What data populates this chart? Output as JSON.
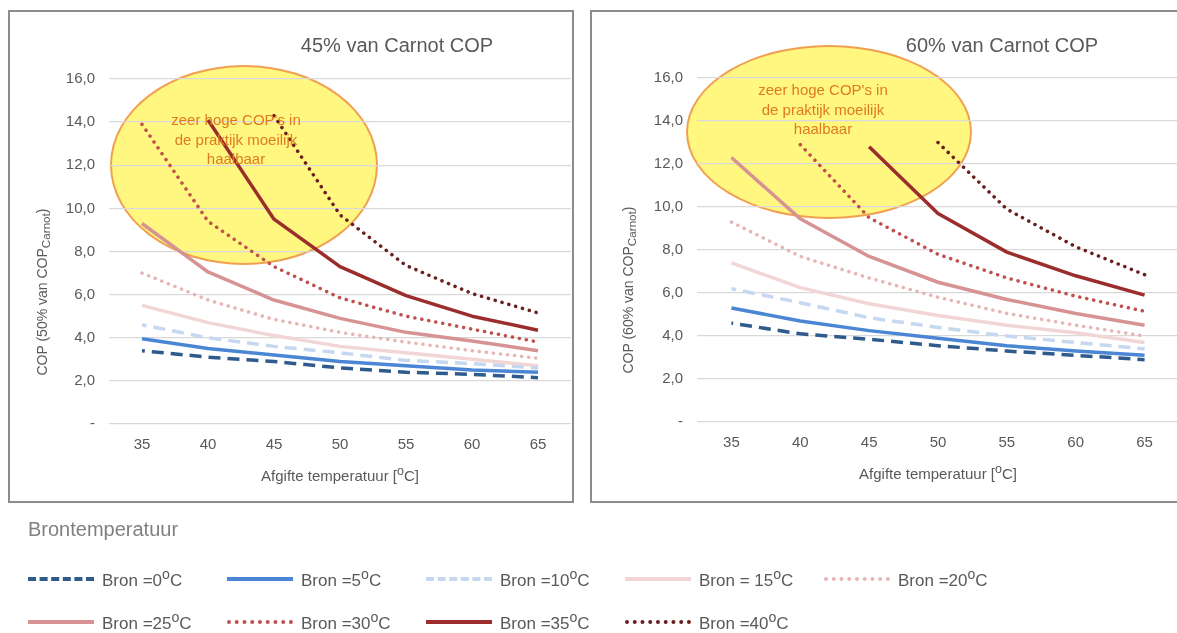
{
  "chart_data": [
    {
      "type": "line",
      "title": "45% van Carnot COP",
      "xlabel": "Afgifte temperatuur [$^{o}$C]",
      "ylabel": "COP (50% van COP$_{Carnot}$)",
      "legend_title": "Brontemperatuur",
      "legend": "bottom",
      "grid": "y",
      "marker": "none",
      "categories": [
        "35",
        "40",
        "45",
        "50",
        "55",
        "60",
        "65"
      ],
      "ylim": [
        0,
        16
      ],
      "yticks": [
        {
          "value": 0,
          "label": "-"
        },
        {
          "value": 2,
          "label": "2,0"
        },
        {
          "value": 4,
          "label": "4,0"
        },
        {
          "value": 6,
          "label": "6,0"
        },
        {
          "value": 8,
          "label": "8,0"
        },
        {
          "value": 10,
          "label": "10,0"
        },
        {
          "value": 12,
          "label": "12,0"
        },
        {
          "value": 14,
          "label": "14,0"
        },
        {
          "value": 16,
          "label": "16,0"
        }
      ],
      "annotations": [
        "zeer hoge COP's  in\nde praktijk moeilijk\nhaalbaar"
      ],
      "series": [
        {
          "name": "Bron =0$^{o}$C",
          "color": "#2e5a8c",
          "line_style": "dashed",
          "values": [
            3.4,
            3.1,
            2.9,
            2.6,
            2.4,
            2.3,
            2.15
          ]
        },
        {
          "name": "Bron =5$^{o}$C",
          "color": "#4a86d4",
          "line_style": "solid",
          "values": [
            3.95,
            3.5,
            3.2,
            2.9,
            2.7,
            2.5,
            2.4
          ]
        },
        {
          "name": "Bron =10$^{o}$C",
          "color": "#c5d8ef",
          "line_style": "dashed",
          "values": [
            4.6,
            4.0,
            3.6,
            3.3,
            2.95,
            2.8,
            2.6
          ]
        },
        {
          "name": "Bron = 15$^{o}$C",
          "color": "#f2d6d6",
          "line_style": "solid",
          "values": [
            5.5,
            4.7,
            4.1,
            3.6,
            3.3,
            3.0,
            2.7
          ]
        },
        {
          "name": "Bron =20$^{o}$C",
          "color": "#e8b4b4",
          "line_style": "dotted",
          "values": [
            7.0,
            5.75,
            4.85,
            4.25,
            3.8,
            3.4,
            3.05
          ]
        },
        {
          "name": "Bron =25$^{o}$C",
          "color": "#d79393",
          "line_style": "solid",
          "values": [
            9.3,
            7.05,
            5.75,
            4.9,
            4.25,
            3.85,
            3.4
          ]
        },
        {
          "name": "Bron =30$^{o}$C",
          "color": "#c0504d",
          "line_style": "dotted",
          "values": [
            13.9,
            9.4,
            7.3,
            5.85,
            5.0,
            4.4,
            3.8
          ]
        },
        {
          "name": "Bron =35$^{o}$C",
          "color": "#9b2d2d",
          "line_style": "solid",
          "values": [
            null,
            14.1,
            9.5,
            7.3,
            5.95,
            5.0,
            4.35
          ]
        },
        {
          "name": "Bron =40$^{o}$C",
          "color": "#6b1e1e",
          "line_style": "dotted",
          "values": [
            null,
            null,
            14.3,
            9.7,
            7.35,
            6.05,
            5.15
          ]
        }
      ]
    },
    {
      "type": "line",
      "title": "60% van Carnot COP",
      "xlabel": "Afgifte temperatuur [$^{o}$C]",
      "ylabel": "COP (60% van COP$_{Carnot}$)",
      "grid": "y",
      "marker": "none",
      "categories": [
        "35",
        "40",
        "45",
        "50",
        "55",
        "60",
        "65"
      ],
      "ylim": [
        0,
        16
      ],
      "yticks": [
        {
          "value": 0,
          "label": "-"
        },
        {
          "value": 2,
          "label": "2,0"
        },
        {
          "value": 4,
          "label": "4,0"
        },
        {
          "value": 6,
          "label": "6,0"
        },
        {
          "value": 8,
          "label": "8,0"
        },
        {
          "value": 10,
          "label": "10,0"
        },
        {
          "value": 12,
          "label": "12,0"
        },
        {
          "value": 14,
          "label": "14,0"
        },
        {
          "value": 16,
          "label": "16,0"
        }
      ],
      "annotations": [
        "zeer hoge COP's  in\nde praktijk moeilijk\nhaalbaar"
      ],
      "series": [
        {
          "color": "#2e5a8c",
          "line_style": "dashed",
          "values": [
            4.6,
            4.1,
            3.85,
            3.55,
            3.3,
            3.1,
            2.9
          ]
        },
        {
          "color": "#4a86d4",
          "line_style": "solid",
          "values": [
            5.3,
            4.7,
            4.25,
            3.9,
            3.55,
            3.3,
            3.1
          ]
        },
        {
          "color": "#c5d8ef",
          "line_style": "dashed",
          "values": [
            6.2,
            5.55,
            4.85,
            4.4,
            4.0,
            3.7,
            3.4
          ]
        },
        {
          "color": "#f2d6d6",
          "line_style": "solid",
          "values": [
            7.4,
            6.25,
            5.5,
            4.95,
            4.5,
            4.15,
            3.7
          ]
        },
        {
          "color": "#e8b4b4",
          "line_style": "dotted",
          "values": [
            9.3,
            7.7,
            6.7,
            5.8,
            5.05,
            4.5,
            4.0
          ]
        },
        {
          "color": "#d79393",
          "line_style": "solid",
          "values": [
            12.3,
            9.45,
            7.7,
            6.5,
            5.7,
            5.05,
            4.5
          ]
        },
        {
          "color": "#c0504d",
          "line_style": "dotted",
          "values": [
            null,
            12.9,
            9.5,
            7.8,
            6.7,
            5.85,
            5.15
          ]
        },
        {
          "color": "#9b2d2d",
          "line_style": "solid",
          "values": [
            null,
            null,
            12.8,
            9.7,
            7.9,
            6.8,
            5.9
          ]
        },
        {
          "color": "#6b1e1e",
          "line_style": "dotted",
          "values": [
            null,
            null,
            null,
            13.0,
            9.9,
            8.15,
            6.85
          ]
        }
      ]
    }
  ]
}
